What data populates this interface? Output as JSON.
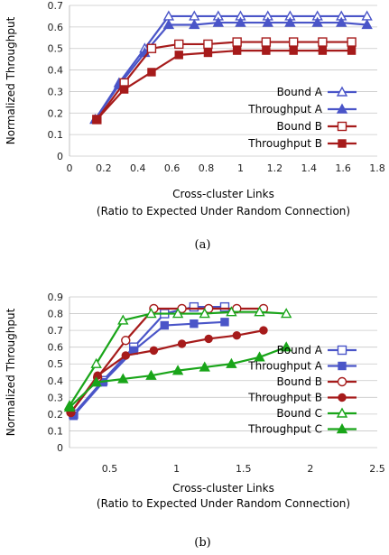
{
  "chart_data": [
    {
      "type": "line",
      "caption": "(a)",
      "xlabel": "Cross-cluster Links",
      "xlabel2": "(Ratio to Expected Under Random Connection)",
      "ylabel": "Normalized Throughput",
      "xlim": [
        0,
        1.8
      ],
      "ylim": [
        0,
        0.7
      ],
      "xticks": [
        "0",
        "0.2",
        "0.4",
        "0.6",
        "0.8",
        "1",
        "1.2",
        "1.4",
        "1.6",
        "1.8"
      ],
      "xtick_values": [
        0,
        0.2,
        0.4,
        0.6,
        0.8,
        1.0,
        1.2,
        1.4,
        1.6,
        1.8
      ],
      "yticks": [
        "0",
        "0.1",
        "0.2",
        "0.3",
        "0.4",
        "0.5",
        "0.6",
        "0.7"
      ],
      "ytick_values": [
        0,
        0.1,
        0.2,
        0.3,
        0.4,
        0.5,
        0.6,
        0.7
      ],
      "legend_position": "bottom-right",
      "series": [
        {
          "name": "Bound A",
          "color": "#4a55c8",
          "marker": "triangle-open",
          "x": [
            0.15,
            0.29,
            0.44,
            0.58,
            0.73,
            0.87,
            1.0,
            1.16,
            1.29,
            1.45,
            1.59,
            1.74
          ],
          "y": [
            0.17,
            0.34,
            0.5,
            0.65,
            0.65,
            0.65,
            0.65,
            0.65,
            0.65,
            0.65,
            0.65,
            0.65
          ]
        },
        {
          "name": "Throughput A",
          "color": "#4a55c8",
          "marker": "triangle-filled",
          "x": [
            0.15,
            0.29,
            0.44,
            0.58,
            0.73,
            0.87,
            1.0,
            1.16,
            1.29,
            1.45,
            1.59,
            1.74
          ],
          "y": [
            0.17,
            0.33,
            0.48,
            0.61,
            0.61,
            0.62,
            0.62,
            0.62,
            0.62,
            0.62,
            0.62,
            0.61
          ]
        },
        {
          "name": "Bound B",
          "color": "#a61b1b",
          "marker": "square-open",
          "x": [
            0.16,
            0.32,
            0.48,
            0.64,
            0.81,
            0.98,
            1.15,
            1.31,
            1.48,
            1.65
          ],
          "y": [
            0.17,
            0.34,
            0.5,
            0.52,
            0.52,
            0.53,
            0.53,
            0.53,
            0.53,
            0.53
          ]
        },
        {
          "name": "Throughput B",
          "color": "#a61b1b",
          "marker": "square-filled",
          "x": [
            0.16,
            0.32,
            0.48,
            0.64,
            0.81,
            0.98,
            1.15,
            1.31,
            1.48,
            1.65
          ],
          "y": [
            0.17,
            0.31,
            0.39,
            0.47,
            0.48,
            0.49,
            0.49,
            0.49,
            0.49,
            0.49
          ]
        }
      ]
    },
    {
      "type": "line",
      "caption": "(b)",
      "xlabel": "Cross-cluster Links",
      "xlabel2": "(Ratio to Expected Under Random Connection)",
      "ylabel": "Normalized Throughput",
      "xlim": [
        0.2,
        2.5
      ],
      "ylim": [
        0,
        0.9
      ],
      "xticks": [
        "0.5",
        "1",
        "1.5",
        "2",
        "2.5"
      ],
      "xtick_values": [
        0.5,
        1.0,
        1.5,
        2.0,
        2.5
      ],
      "yticks": [
        "0",
        "0.1",
        "0.2",
        "0.3",
        "0.4",
        "0.5",
        "0.6",
        "0.7",
        "0.8",
        "0.9"
      ],
      "ytick_values": [
        0,
        0.1,
        0.2,
        0.3,
        0.4,
        0.5,
        0.6,
        0.7,
        0.8,
        0.9
      ],
      "legend_position": "bottom-right",
      "series": [
        {
          "name": "Bound A",
          "color": "#4a55c8",
          "marker": "square-open",
          "x": [
            0.23,
            0.45,
            0.68,
            0.91,
            1.13,
            1.36
          ],
          "y": [
            0.2,
            0.4,
            0.6,
            0.8,
            0.84,
            0.84
          ]
        },
        {
          "name": "Throughput A",
          "color": "#4a55c8",
          "marker": "square-filled",
          "x": [
            0.23,
            0.45,
            0.68,
            0.91,
            1.13,
            1.36
          ],
          "y": [
            0.19,
            0.39,
            0.58,
            0.73,
            0.74,
            0.75
          ]
        },
        {
          "name": "Bound B",
          "color": "#a61b1b",
          "marker": "circle-open",
          "x": [
            0.21,
            0.41,
            0.62,
            0.83,
            1.04,
            1.24,
            1.45,
            1.65
          ],
          "y": [
            0.21,
            0.42,
            0.64,
            0.83,
            0.83,
            0.83,
            0.83,
            0.83
          ]
        },
        {
          "name": "Throughput B",
          "color": "#a61b1b",
          "marker": "circle-filled",
          "x": [
            0.21,
            0.41,
            0.62,
            0.83,
            1.04,
            1.24,
            1.45,
            1.65
          ],
          "y": [
            0.21,
            0.43,
            0.55,
            0.58,
            0.62,
            0.65,
            0.67,
            0.7
          ]
        },
        {
          "name": "Bound C",
          "color": "#19a519",
          "marker": "triangle-open",
          "x": [
            0.2,
            0.4,
            0.6,
            0.81,
            1.01,
            1.21,
            1.41,
            1.62,
            1.82
          ],
          "y": [
            0.25,
            0.5,
            0.76,
            0.8,
            0.8,
            0.8,
            0.81,
            0.81,
            0.8
          ]
        },
        {
          "name": "Throughput C",
          "color": "#19a519",
          "marker": "triangle-filled",
          "x": [
            0.2,
            0.4,
            0.6,
            0.81,
            1.01,
            1.21,
            1.41,
            1.62,
            1.82
          ],
          "y": [
            0.24,
            0.39,
            0.41,
            0.43,
            0.46,
            0.48,
            0.5,
            0.54,
            0.6
          ]
        }
      ]
    }
  ]
}
